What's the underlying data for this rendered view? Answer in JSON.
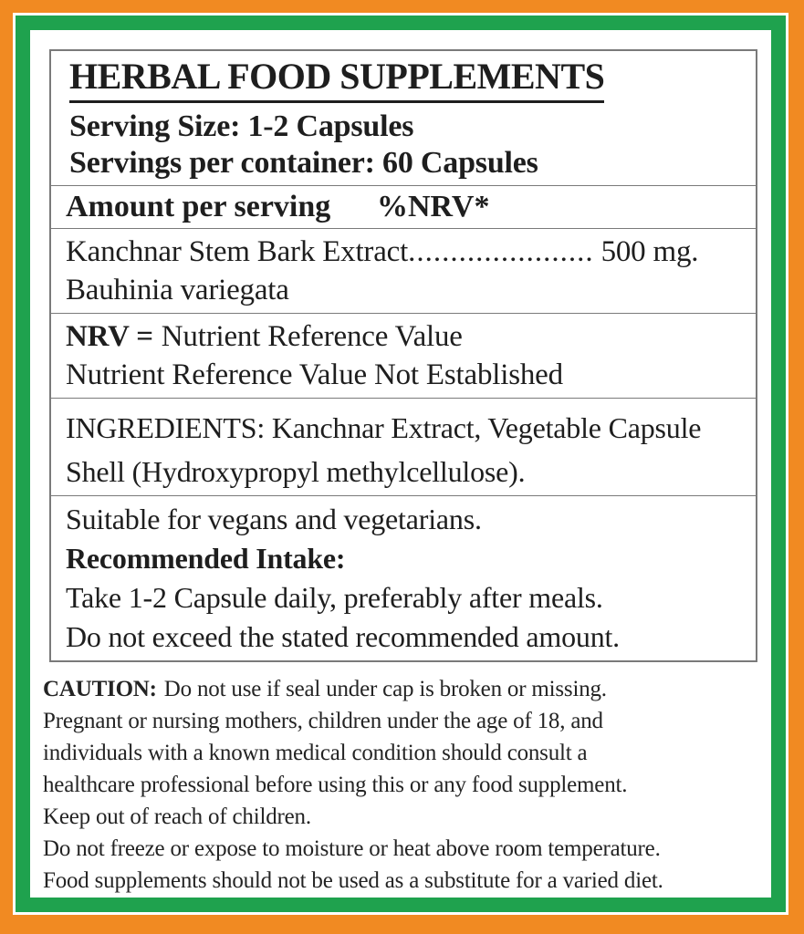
{
  "colors": {
    "orange_border": "#f18a22",
    "green_border": "#1fa24e",
    "table_border": "#7a7a7a",
    "text": "#1e1e1e"
  },
  "label": {
    "title": "HERBAL FOOD SUPPLEMENTS",
    "serving_size": "Serving Size: 1-2 Capsules",
    "servings_per_container": "Servings per container: 60 Capsules",
    "amount_header": "Amount per serving",
    "nrv_header": "%NRV*",
    "active_ingredient": {
      "name": "Kanchnar Stem Bark Extract",
      "leader_dots": "......................",
      "amount": "500 mg.",
      "botanical_name": "Bauhinia variegata"
    },
    "nrv_note": {
      "abbr": "NRV =",
      "definition": "Nutrient Reference Value",
      "not_established": "Nutrient Reference Value Not Established"
    },
    "ingredients": {
      "line1": "INGREDIENTS: Kanchnar Extract, Vegetable Capsule",
      "line2": "Shell (Hydroxypropyl methylcellulose)."
    },
    "usage": {
      "suitable": "Suitable for vegans and vegetarians.",
      "intake_heading": "Recommended Intake:",
      "intake_line1": "Take 1-2 Capsule daily, preferably after meals.",
      "intake_line2": "Do not exceed the stated recommended amount."
    },
    "caution": {
      "heading": "CAUTION:",
      "line1_rest": "Do not use if seal under cap is broken or missing.",
      "lines": [
        "Pregnant or nursing mothers, children under the age of 18, and",
        "individuals with a known medical condition should consult a",
        "healthcare professional before using this or any food supplement.",
        "Keep out of reach of children.",
        "Do not freeze or expose to moisture or heat above room temperature.",
        "Food supplements should not be used as a substitute for a varied diet."
      ]
    }
  }
}
